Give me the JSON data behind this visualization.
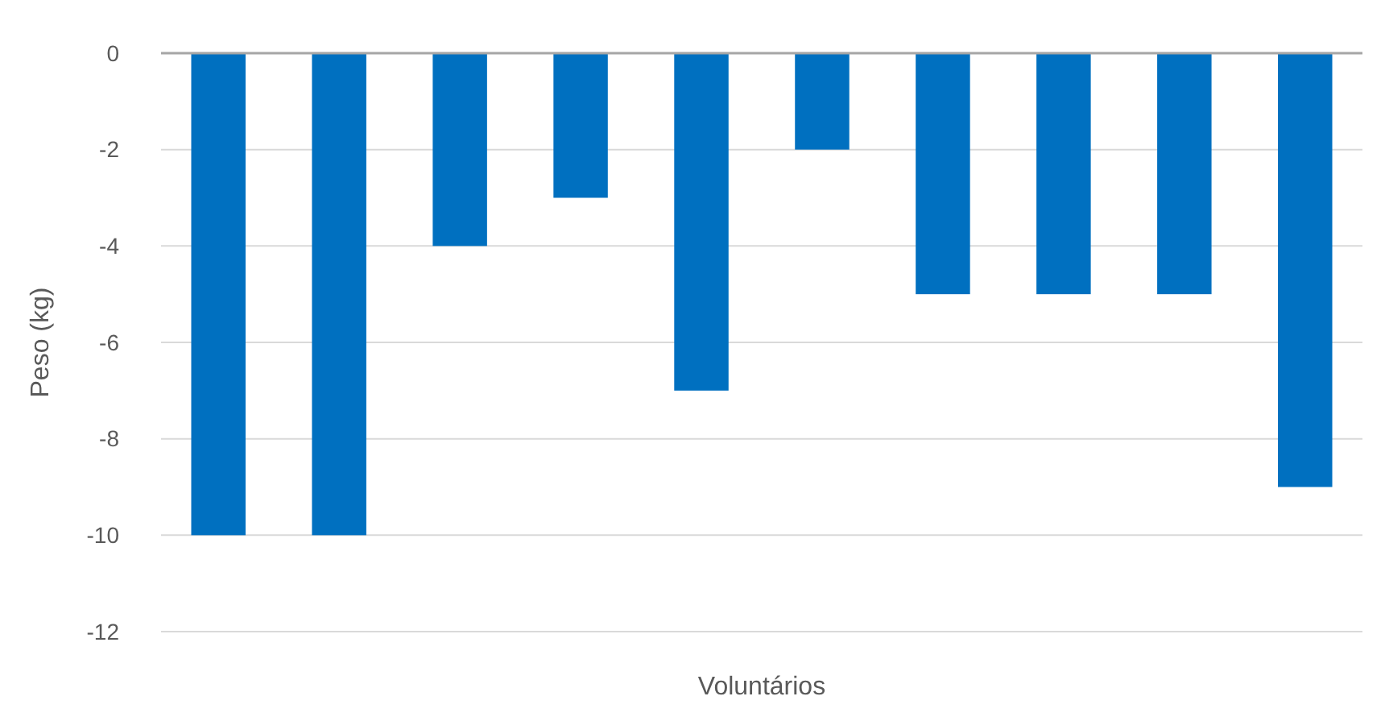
{
  "chart_data": {
    "type": "bar",
    "xlabel": "Voluntários",
    "ylabel": "Peso (kg)",
    "categories": [
      null,
      null,
      null,
      null,
      null,
      null,
      null,
      null,
      null,
      null
    ],
    "values": [
      -10,
      -10,
      -4,
      -3,
      -7,
      -2,
      -5,
      -5,
      -5,
      -9
    ],
    "color": "#0070c0",
    "ylim": [
      -12,
      0
    ],
    "yticks": [
      -12,
      -10,
      -8,
      -6,
      -4,
      -2,
      0
    ],
    "grid": "y"
  }
}
